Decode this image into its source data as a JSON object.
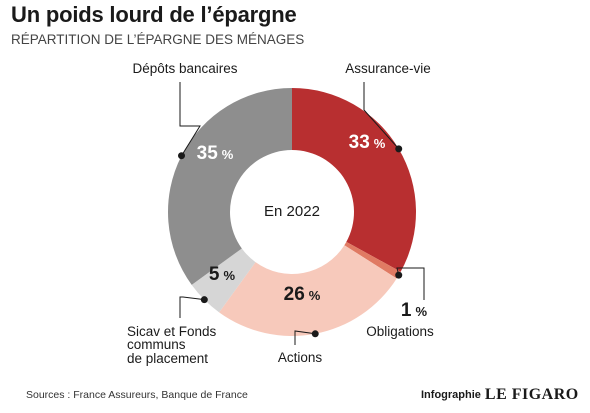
{
  "title": "Un poids lourd de l’épargne",
  "subtitle": "RÉPARTITION DE L’ÉPARGNE DES MÉNAGES",
  "center_label": "En 2022",
  "footer": {
    "source": "Sources : France Assureurs, Banque de France",
    "credit": "Infographie",
    "logo": "LE FIGARO"
  },
  "chart_data": {
    "type": "pie",
    "donut": true,
    "unit": "%",
    "slices": [
      {
        "name": "Assurance-vie",
        "value": 33,
        "value_label": "33",
        "color": "#b82f30",
        "label_color": "#ffffff"
      },
      {
        "name": "Obligations",
        "value": 1,
        "value_label": "1",
        "color": "#e07a63",
        "label_color": "#1a1a1a"
      },
      {
        "name": "Actions",
        "value": 26,
        "value_label": "26",
        "color": "#f7c9bb",
        "label_color": "#1a1a1a"
      },
      {
        "name": "Sicav et Fonds communs de placement",
        "value": 5,
        "value_label": "5",
        "color": "#d6d6d6",
        "label_color": "#1a1a1a"
      },
      {
        "name": "Dépôts bancaires",
        "value": 35,
        "value_label": "35",
        "color": "#8e8e8e",
        "label_color": "#ffffff"
      }
    ]
  }
}
